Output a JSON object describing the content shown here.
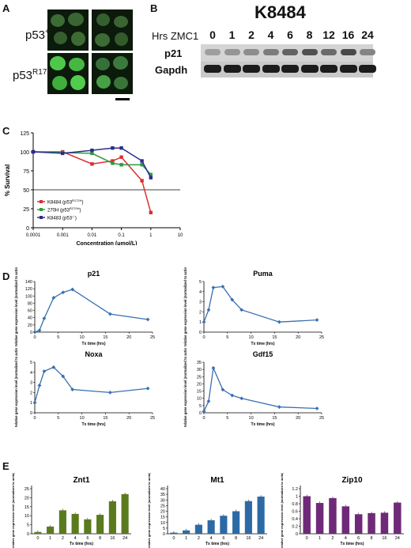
{
  "panels": {
    "A": {
      "label": "A",
      "rows": [
        {
          "base": "p53",
          "sup": "+/+"
        },
        {
          "base": "p53",
          "sup": "R172H/+"
        }
      ]
    },
    "B": {
      "label": "B",
      "title": "K8484",
      "hrs_label": "Hrs ZMC1",
      "timepoints": [
        "0",
        "1",
        "2",
        "4",
        "6",
        "8",
        "12",
        "16",
        "24"
      ],
      "bands": [
        "p21",
        "Gapdh"
      ],
      "p21_intensity": [
        0.25,
        0.3,
        0.35,
        0.45,
        0.6,
        0.7,
        0.55,
        0.75,
        0.4
      ]
    },
    "C": {
      "label": "C"
    },
    "D": {
      "label": "D"
    },
    "E": {
      "label": "E"
    }
  },
  "chart_data": [
    {
      "panel": "C",
      "type": "line",
      "ylabel": "% Survival",
      "xlabel": "Concentration (μmol/L)",
      "xscale": "log",
      "xlim": [
        0.0001,
        10
      ],
      "ylim": [
        0,
        125
      ],
      "x_ticks": [
        "0.0001",
        "0.001",
        "0.01",
        "0.1",
        "1",
        "10"
      ],
      "y_ticks": [
        "0",
        "25",
        "50",
        "75",
        "100",
        "125"
      ],
      "reference_line_y": 50,
      "x": [
        0.0001,
        0.001,
        0.01,
        0.05,
        0.1,
        0.5,
        1
      ],
      "series": [
        {
          "name": "K8484 (p53R172H)",
          "name_base": "K8484 (p53",
          "name_sup": "R172H",
          "color": "#d93030",
          "values": [
            100,
            100,
            84,
            88,
            93,
            62,
            20
          ]
        },
        {
          "name": "270H (p53R270H)",
          "name_base": "270H (p53",
          "name_sup": "R270H",
          "color": "#2e9a42",
          "values": [
            100,
            99,
            98,
            85,
            83,
            83,
            70
          ]
        },
        {
          "name": "K8483 (p53-/-)",
          "name_base": "K8483 (p53",
          "name_sup": "-/-",
          "color": "#2c2c8c",
          "values": [
            100,
            98,
            102,
            105,
            105,
            88,
            66
          ]
        }
      ],
      "legend_position": "lower-left"
    },
    {
      "panel": "D",
      "type": "line",
      "title": "p21",
      "xlabel": "Tx time (hrs)",
      "ylabel": "Relative gene expression level (normalized to actin)",
      "x": [
        0,
        1,
        2,
        4,
        6,
        8,
        16,
        24
      ],
      "values": [
        0,
        5,
        38,
        95,
        110,
        118,
        50,
        35
      ],
      "ylim": [
        0,
        140
      ],
      "y_ticks": [
        "0",
        "20",
        "40",
        "60",
        "80",
        "100",
        "120",
        "140"
      ],
      "x_ticks": [
        "0",
        "5",
        "10",
        "15",
        "20",
        "25"
      ]
    },
    {
      "panel": "D",
      "type": "line",
      "title": "Puma",
      "xlabel": "Tx time (hrs)",
      "ylabel": "Relative gene expression level (normalized to actin)",
      "x": [
        0,
        1,
        2,
        4,
        6,
        8,
        16,
        24
      ],
      "values": [
        1,
        2.2,
        4.4,
        4.5,
        3.2,
        2.2,
        1,
        1.2
      ],
      "ylim": [
        0,
        5
      ],
      "y_ticks": [
        "0",
        "1",
        "2",
        "3",
        "4",
        "5"
      ],
      "x_ticks": [
        "0",
        "5",
        "10",
        "15",
        "20",
        "25"
      ]
    },
    {
      "panel": "D",
      "type": "line",
      "title": "Noxa",
      "xlabel": "Tx time (hrs)",
      "ylabel": "Relative gene expression level (normalized to actin)",
      "x": [
        0,
        1,
        2,
        4,
        6,
        8,
        16,
        24
      ],
      "values": [
        1,
        2.7,
        4.1,
        4.5,
        3.6,
        2.3,
        2,
        2.4
      ],
      "ylim": [
        0,
        5
      ],
      "y_ticks": [
        "0",
        "1",
        "2",
        "3",
        "4",
        "5"
      ],
      "x_ticks": [
        "0",
        "5",
        "10",
        "15",
        "20",
        "25"
      ]
    },
    {
      "panel": "D",
      "type": "line",
      "title": "Gdf15",
      "xlabel": "Tx time (hrs)",
      "ylabel": "Relative gene expression level (normalized to actin)",
      "x": [
        0,
        1,
        2,
        4,
        6,
        8,
        16,
        24
      ],
      "values": [
        1,
        8,
        31,
        16,
        12,
        10,
        4,
        3
      ],
      "ylim": [
        0,
        35
      ],
      "y_ticks": [
        "0",
        "5",
        "10",
        "15",
        "20",
        "25",
        "30",
        "35"
      ],
      "x_ticks": [
        "0",
        "5",
        "10",
        "15",
        "20",
        "25"
      ]
    },
    {
      "panel": "E",
      "type": "bar",
      "title": "Znt1",
      "xlabel": "Tx time (hrs)",
      "ylabel": "Relative gene expression level (normalized to actin)",
      "categories": [
        "0",
        "1",
        "2",
        "4",
        "6",
        "8",
        "16",
        "24"
      ],
      "values": [
        1,
        4,
        13,
        11,
        8,
        10.5,
        18,
        22
      ],
      "ylim": [
        0,
        25
      ],
      "y_ticks": [
        "0",
        "5",
        "10",
        "15",
        "20",
        "25"
      ],
      "color": "#5a7a1e"
    },
    {
      "panel": "E",
      "type": "bar",
      "title": "Mt1",
      "xlabel": "Tx time (hrs)",
      "ylabel": "Relative gene expression level (normalized to actin)",
      "categories": [
        "0",
        "1",
        "2",
        "4",
        "6",
        "8",
        "16",
        "24"
      ],
      "values": [
        1,
        3,
        8,
        12,
        16,
        20,
        29,
        33
      ],
      "ylim": [
        0,
        40
      ],
      "y_ticks": [
        "0",
        "5",
        "10",
        "15",
        "20",
        "25",
        "30",
        "35",
        "40"
      ],
      "color": "#2c6aa6"
    },
    {
      "panel": "E",
      "type": "bar",
      "title": "Zip10",
      "xlabel": "Tx time (hrs)",
      "ylabel": "Relative gene expression level (normalized to actin)",
      "categories": [
        "0",
        "1",
        "2",
        "4",
        "6",
        "8",
        "16",
        "24"
      ],
      "values": [
        1.0,
        0.82,
        0.95,
        0.73,
        0.52,
        0.55,
        0.56,
        0.83
      ],
      "ylim": [
        0,
        1.2
      ],
      "y_ticks": [
        "0",
        "0.2",
        "0.4",
        "0.6",
        "0.8",
        "1",
        "1.2"
      ],
      "color": "#6e2a78"
    }
  ]
}
